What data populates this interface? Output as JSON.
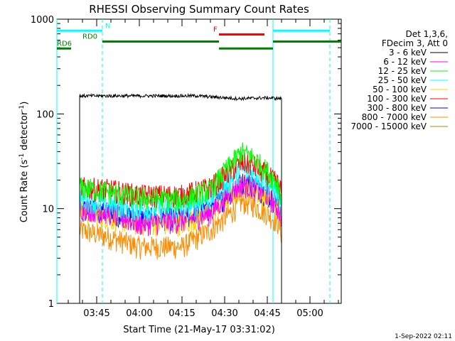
{
  "chart_data": {
    "type": "line",
    "title": "RHESSI Observing Summary Count Rates",
    "xlabel": "Start Time (21-May-17 03:31:02)",
    "ylabel_main": "Count Rate (s",
    "ylabel_sup1": "-1",
    "ylabel_mid": " detector",
    "ylabel_sup2": "-1",
    "ylabel_end": ")",
    "footer_date": "1-Sep-2022 02:11",
    "yscale": "log",
    "ylim": [
      1,
      1000
    ],
    "xlim": [
      "03:31",
      "05:11"
    ],
    "x_ticks": [
      {
        "t": "03:45",
        "label": "03:45"
      },
      {
        "t": "04:00",
        "label": "04:00"
      },
      {
        "t": "04:15",
        "label": "04:15"
      },
      {
        "t": "04:30",
        "label": "04:30"
      },
      {
        "t": "04:45",
        "label": "04:45"
      },
      {
        "t": "05:00",
        "label": "05:00"
      }
    ],
    "y_ticks": [
      {
        "v": 1,
        "label": "1"
      },
      {
        "v": 10,
        "label": "10"
      },
      {
        "v": 100,
        "label": "100"
      },
      {
        "v": 1000,
        "label": "1000"
      }
    ],
    "legend_header": [
      "Det 1,3,6,",
      "FDecim 3, Att 0"
    ],
    "series": [
      {
        "name": "3 - 6 keV",
        "color": "#000000",
        "points": [
          [
            "03:39",
            1
          ],
          [
            "03:39",
            30
          ],
          [
            "03:39",
            155
          ],
          [
            "04:00",
            155
          ],
          [
            "04:20",
            155
          ],
          [
            "04:35",
            145
          ],
          [
            "04:45",
            148
          ],
          [
            "04:50",
            145
          ],
          [
            "04:50",
            1
          ]
        ]
      },
      {
        "name": "6 - 12 keV",
        "color": "#ff00ff",
        "points": [
          [
            "03:39",
            10.5
          ],
          [
            "03:50",
            9
          ],
          [
            "04:00",
            7
          ],
          [
            "04:15",
            7.5
          ],
          [
            "04:25",
            9
          ],
          [
            "04:32",
            15
          ],
          [
            "04:36",
            18
          ],
          [
            "04:40",
            17
          ],
          [
            "04:45",
            14
          ],
          [
            "04:49",
            10
          ],
          [
            "04:50",
            8
          ]
        ]
      },
      {
        "name": "12 - 25 keV",
        "color": "#00ff00",
        "points": [
          [
            "03:39",
            17
          ],
          [
            "03:50",
            15
          ],
          [
            "04:00",
            13
          ],
          [
            "04:15",
            12.5
          ],
          [
            "04:25",
            16
          ],
          [
            "04:30",
            25
          ],
          [
            "04:36",
            40
          ],
          [
            "04:40",
            35
          ],
          [
            "04:45",
            25
          ],
          [
            "04:49",
            18
          ],
          [
            "04:50",
            13
          ]
        ]
      },
      {
        "name": "25 - 50 keV",
        "color": "#00ffff",
        "points": [
          [
            "03:39",
            13
          ],
          [
            "03:50",
            11
          ],
          [
            "04:00",
            10
          ],
          [
            "04:15",
            10
          ],
          [
            "04:25",
            13
          ],
          [
            "04:32",
            20
          ],
          [
            "04:36",
            26
          ],
          [
            "04:40",
            24
          ],
          [
            "04:45",
            19
          ],
          [
            "04:49",
            14
          ],
          [
            "04:50",
            11
          ]
        ]
      },
      {
        "name": "50 - 100 keV",
        "color": "#ffd400",
        "points": [
          [
            "03:39",
            9.5
          ],
          [
            "03:50",
            8
          ],
          [
            "04:00",
            7
          ],
          [
            "04:15",
            7
          ],
          [
            "04:25",
            9
          ],
          [
            "04:32",
            14
          ],
          [
            "04:36",
            17
          ],
          [
            "04:40",
            16
          ],
          [
            "04:45",
            13
          ],
          [
            "04:49",
            10
          ],
          [
            "04:50",
            8
          ]
        ]
      },
      {
        "name": "100 - 300 keV",
        "color": "#ff0000",
        "points": [
          [
            "03:39",
            17
          ],
          [
            "03:50",
            16
          ],
          [
            "04:00",
            14
          ],
          [
            "04:15",
            14
          ],
          [
            "04:25",
            17
          ],
          [
            "04:32",
            25
          ],
          [
            "04:36",
            31
          ],
          [
            "04:40",
            29
          ],
          [
            "04:45",
            23
          ],
          [
            "04:49",
            18
          ],
          [
            "04:50",
            15
          ]
        ]
      },
      {
        "name": "300 - 800 keV",
        "color": "#0000ff",
        "points": [
          [
            "03:39",
            10
          ],
          [
            "03:50",
            9
          ],
          [
            "04:00",
            8
          ],
          [
            "04:15",
            8
          ],
          [
            "04:25",
            10
          ],
          [
            "04:32",
            15
          ],
          [
            "04:36",
            19
          ],
          [
            "04:40",
            18
          ],
          [
            "04:45",
            14
          ],
          [
            "04:49",
            11
          ],
          [
            "04:50",
            9
          ]
        ]
      },
      {
        "name": "800 - 7000 keV",
        "color": "#ff8c00",
        "points": [
          [
            "03:39",
            6
          ],
          [
            "03:50",
            5
          ],
          [
            "04:00",
            4
          ],
          [
            "04:15",
            4
          ],
          [
            "04:25",
            6
          ],
          [
            "04:32",
            9
          ],
          [
            "04:36",
            12
          ],
          [
            "04:40",
            11
          ],
          [
            "04:45",
            9
          ],
          [
            "04:49",
            7
          ],
          [
            "04:50",
            5.5
          ],
          [
            "04:50",
            1
          ]
        ]
      },
      {
        "name": "7000 - 15000 keV",
        "color": "#b8860b",
        "points": []
      }
    ],
    "vlines": [
      {
        "t": "03:31",
        "color": "#00ffff",
        "style": "solid"
      },
      {
        "t": "03:47",
        "color": "#00ffff",
        "style": "dashed"
      },
      {
        "t": "04:47",
        "color": "#00ffff",
        "style": "solid"
      },
      {
        "t": "05:07",
        "color": "#00ffff",
        "style": "dashed"
      }
    ],
    "state_bars": [
      {
        "label": "N",
        "color": "#00ffff",
        "y": 755,
        "segments": [
          [
            "03:31",
            "03:47"
          ],
          [
            "04:47",
            "05:07"
          ]
        ],
        "label_at": "03:48"
      },
      {
        "label": "RD0",
        "color": "#008000",
        "y": 580,
        "segments": [
          [
            "03:47",
            "04:28"
          ],
          [
            "04:47",
            "05:11"
          ]
        ],
        "label_at": "03:40"
      },
      {
        "label": "RD6",
        "color": "#008000",
        "y": 490,
        "segments": [
          [
            "03:31",
            "03:36"
          ],
          [
            "04:28",
            "04:47"
          ]
        ],
        "label_at": "03:31"
      },
      {
        "label": "F",
        "color": "#ff0000",
        "y": 690,
        "segments": [
          [
            "04:28",
            "04:44"
          ]
        ],
        "label_at": "04:26"
      }
    ]
  }
}
